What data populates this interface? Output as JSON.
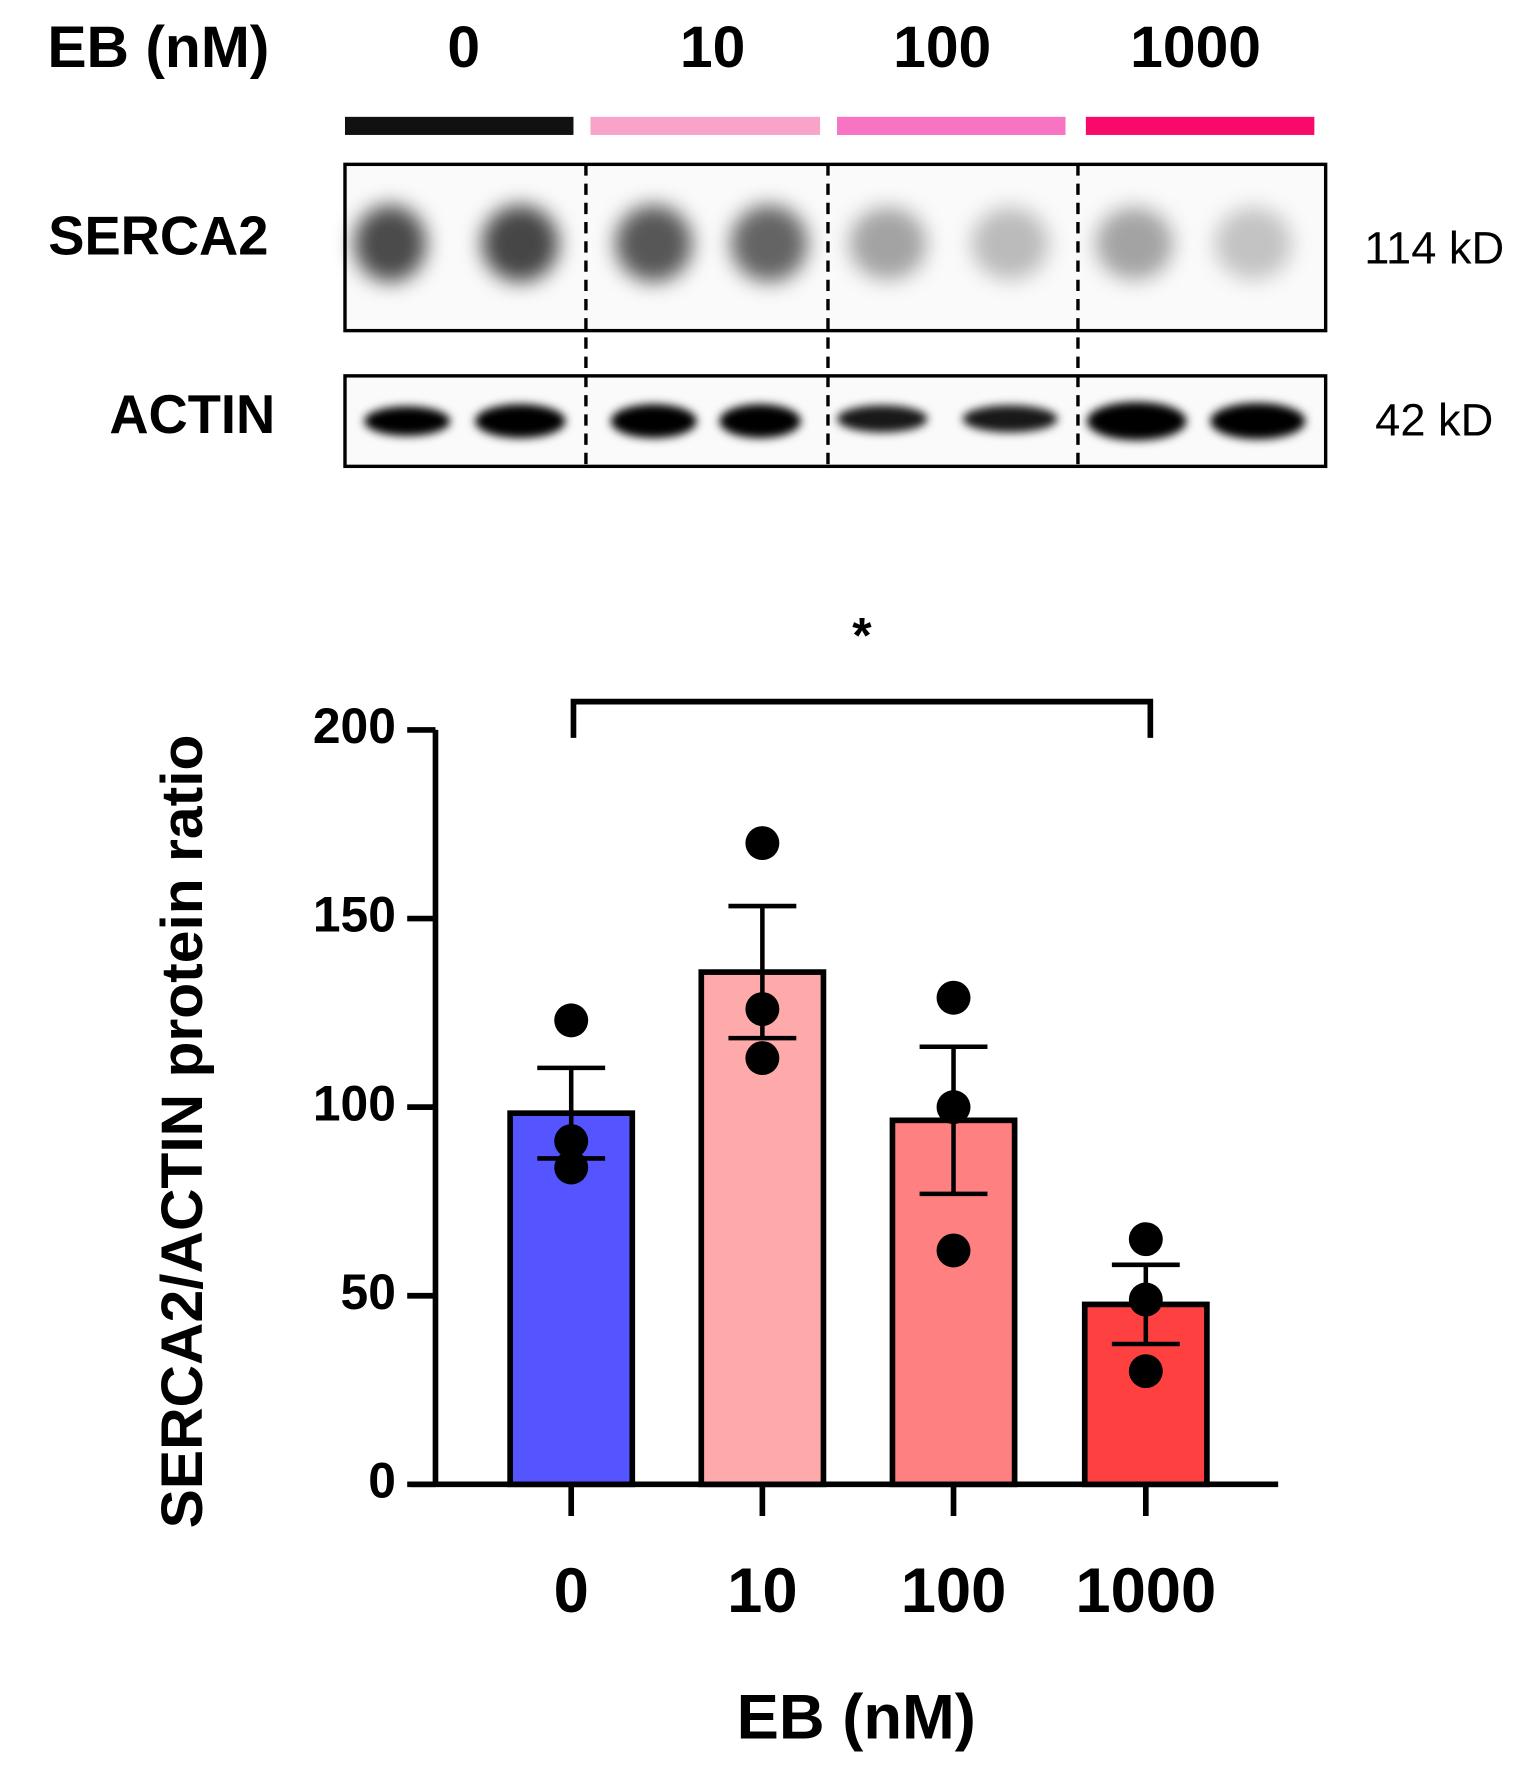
{
  "blot": {
    "label": "EB (nM)",
    "lanes": [
      "0",
      "10",
      "100",
      "1000"
    ],
    "lane_colors": [
      "#111111",
      "#f9a3c9",
      "#f873c2",
      "#f80a6a"
    ],
    "rows": [
      {
        "name": "SERCA2",
        "size": "114 kD"
      },
      {
        "name": "ACTIN",
        "size": "42 kD"
      }
    ]
  },
  "chart_data": {
    "type": "bar",
    "x_label": "EB (nM)",
    "y_label": "SERCA2/ACTIN protein ratio",
    "categories": [
      "0",
      "10",
      "100",
      "1000"
    ],
    "values": [
      98.4,
      135.8,
      96.5,
      47.7
    ],
    "errors": [
      12,
      17.5,
      19.5,
      10.5
    ],
    "points": [
      [
        123,
        91,
        84
      ],
      [
        170,
        126,
        113
      ],
      [
        129,
        100,
        62
      ],
      [
        65,
        49,
        30
      ]
    ],
    "colors": [
      "#5555ff",
      "#ffaaaa",
      "#ff8080",
      "#ff4040"
    ],
    "ylim": [
      0,
      200
    ],
    "yticks": [
      0,
      50,
      100,
      150,
      200
    ],
    "significance": [
      {
        "label": "*",
        "between": [
          "0",
          "1000"
        ]
      }
    ]
  }
}
